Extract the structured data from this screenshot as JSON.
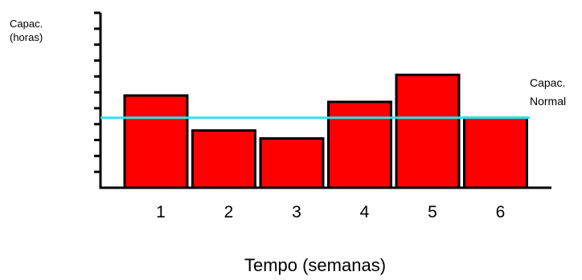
{
  "chart_data": {
    "type": "bar",
    "categories": [
      "1",
      "2",
      "3",
      "4",
      "5",
      "6"
    ],
    "values": [
      5.8,
      3.6,
      3.1,
      5.4,
      7.1,
      4.4
    ],
    "ylim": [
      0,
      11
    ],
    "ylabel": "Capac.\n(horas)",
    "xlabel": "Tempo (semanas)",
    "reference_line": {
      "label": "Capac.\nNormal",
      "value": 4.4,
      "color": "#33e0f0"
    },
    "bar_color": "#ff0000",
    "grid": false
  }
}
